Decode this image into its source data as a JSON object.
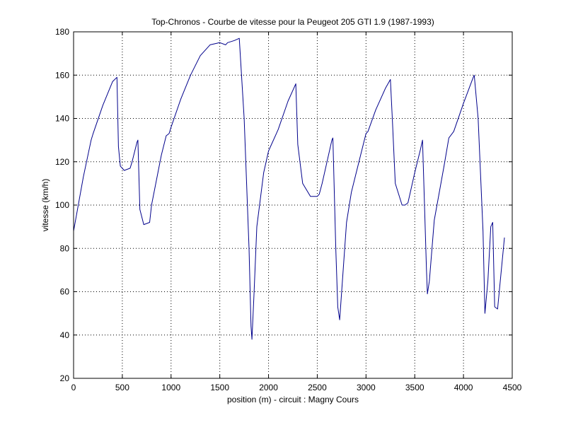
{
  "chart_data": {
    "type": "line",
    "title": "Top-Chronos - Courbe de vitesse pour la Peugeot 205 GTI 1.9 (1987-1993)",
    "xlabel": "position (m) - circuit : Magny Cours",
    "ylabel": "vitesse (km/h)",
    "xlim": [
      0,
      4500
    ],
    "ylim": [
      20,
      180
    ],
    "xticks": [
      0,
      500,
      1000,
      1500,
      2000,
      2500,
      3000,
      3500,
      4000,
      4500
    ],
    "yticks": [
      20,
      40,
      60,
      80,
      100,
      120,
      140,
      160,
      180
    ],
    "grid": true,
    "line_color": "#00008b",
    "series": [
      {
        "x": [
          0,
          100,
          180,
          200,
          300,
          400,
          445,
          460,
          480,
          520,
          580,
          600,
          650,
          660,
          680,
          720,
          780,
          800,
          900,
          950,
          980,
          1000,
          1100,
          1200,
          1300,
          1400,
          1500,
          1560,
          1580,
          1650,
          1700,
          1750,
          1800,
          1820,
          1830,
          1850,
          1880,
          1950,
          2000,
          2080,
          2100,
          2200,
          2280,
          2300,
          2350,
          2430,
          2500,
          2520,
          2550,
          2600,
          2650,
          2660,
          2690,
          2710,
          2730,
          2800,
          2850,
          2950,
          3000,
          3020,
          3100,
          3200,
          3250,
          3270,
          3300,
          3370,
          3400,
          3430,
          3500,
          3560,
          3580,
          3620,
          3630,
          3650,
          3700,
          3800,
          3850,
          3900,
          4000,
          4050,
          4100,
          4110,
          4150,
          4200,
          4220,
          4250,
          4280,
          4300,
          4320,
          4350,
          4420
        ],
        "y": [
          88,
          113,
          130,
          133,
          146,
          157,
          159,
          127,
          118,
          116,
          117,
          120,
          129,
          130,
          98,
          91,
          92,
          100,
          123,
          132,
          133,
          136,
          149,
          160,
          169,
          174,
          175,
          174,
          175,
          176,
          177,
          140,
          80,
          44,
          38,
          58,
          90,
          115,
          125,
          133,
          135,
          148,
          156,
          128,
          110,
          104,
          104,
          105,
          110,
          120,
          130,
          131,
          80,
          53,
          47,
          92,
          106,
          124,
          133,
          134,
          144,
          154,
          158,
          140,
          110,
          100,
          100,
          101,
          115,
          126,
          130,
          70,
          59,
          65,
          93,
          118,
          131,
          134,
          147,
          153,
          159,
          160,
          140,
          88,
          50,
          65,
          90,
          92,
          53,
          52,
          85
        ]
      }
    ]
  }
}
